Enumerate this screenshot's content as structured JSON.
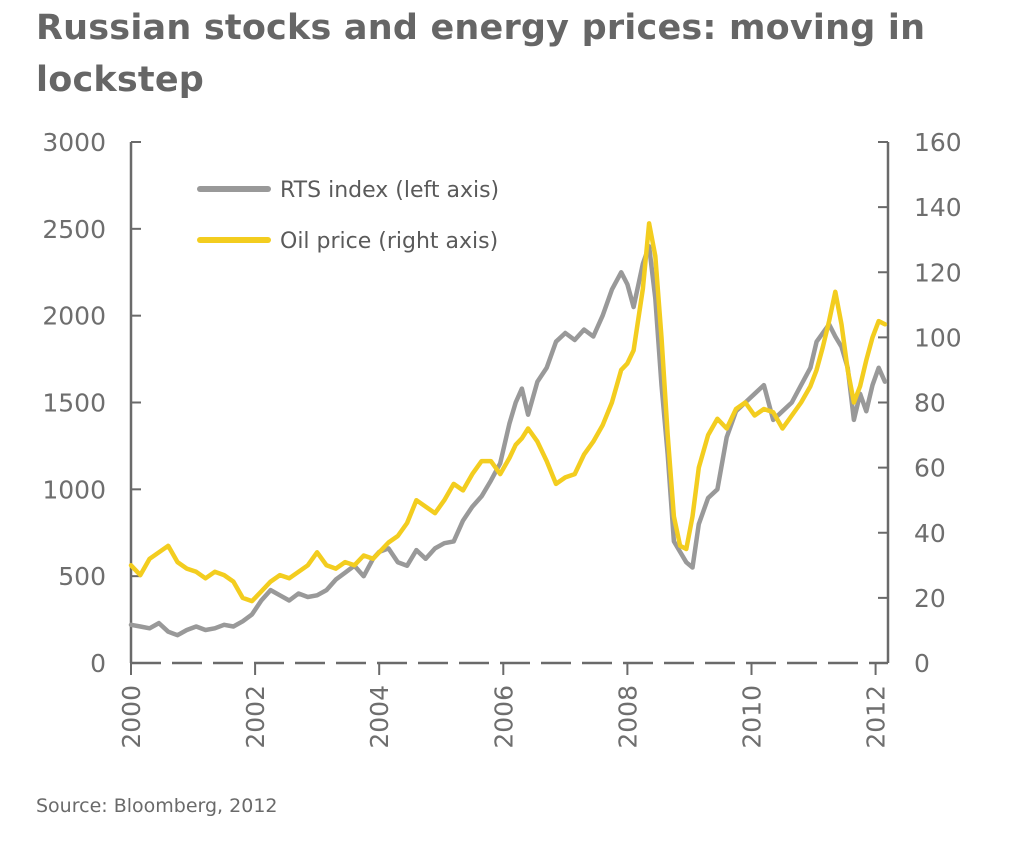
{
  "title": "Russian stocks and energy prices: moving in lockstep",
  "source": "Source: Bloomberg, 2012",
  "chart_data": {
    "type": "line",
    "title": "Russian stocks and energy prices: moving in lockstep",
    "xlabel": "",
    "ylabel": "",
    "xlim": [
      2000,
      2012.2
    ],
    "ylim_left": [
      0,
      3000
    ],
    "ylim_right": [
      0,
      160
    ],
    "x_ticks": [
      "2000",
      "2002",
      "2004",
      "2006",
      "2008",
      "2010",
      "2012"
    ],
    "y_ticks_left": [
      "3000",
      "2500",
      "2000",
      "1500",
      "1000",
      "500",
      "0"
    ],
    "y_ticks_right": [
      "160",
      "140",
      "120",
      "100",
      "80",
      "60",
      "40",
      "20",
      "0"
    ],
    "legend_position": "top-left",
    "grid": false,
    "series": [
      {
        "name": "RTS index (left axis)",
        "axis": "left",
        "color": "#999999",
        "x": [
          2000.0,
          2000.15,
          2000.3,
          2000.45,
          2000.6,
          2000.75,
          2000.9,
          2001.05,
          2001.2,
          2001.35,
          2001.5,
          2001.65,
          2001.8,
          2001.95,
          2002.1,
          2002.25,
          2002.4,
          2002.55,
          2002.7,
          2002.85,
          2003.0,
          2003.15,
          2003.3,
          2003.45,
          2003.6,
          2003.75,
          2003.9,
          2004.0,
          2004.15,
          2004.3,
          2004.45,
          2004.6,
          2004.75,
          2004.9,
          2005.05,
          2005.2,
          2005.35,
          2005.5,
          2005.65,
          2005.8,
          2005.95,
          2006.1,
          2006.2,
          2006.3,
          2006.4,
          2006.55,
          2006.7,
          2006.85,
          2007.0,
          2007.15,
          2007.3,
          2007.45,
          2007.6,
          2007.75,
          2007.9,
          2008.0,
          2008.1,
          2008.25,
          2008.35,
          2008.45,
          2008.55,
          2008.65,
          2008.75,
          2008.85,
          2008.95,
          2009.05,
          2009.15,
          2009.3,
          2009.45,
          2009.6,
          2009.75,
          2009.9,
          2010.05,
          2010.2,
          2010.35,
          2010.5,
          2010.65,
          2010.8,
          2010.95,
          2011.05,
          2011.15,
          2011.25,
          2011.35,
          2011.45,
          2011.55,
          2011.65,
          2011.75,
          2011.85,
          2011.95,
          2012.05,
          2012.15
        ],
        "values": [
          220,
          210,
          200,
          230,
          180,
          160,
          190,
          210,
          190,
          200,
          220,
          210,
          240,
          280,
          360,
          420,
          390,
          360,
          400,
          380,
          390,
          420,
          480,
          520,
          560,
          500,
          600,
          640,
          660,
          580,
          560,
          650,
          600,
          660,
          690,
          700,
          820,
          900,
          960,
          1050,
          1150,
          1380,
          1500,
          1580,
          1430,
          1620,
          1700,
          1850,
          1900,
          1860,
          1920,
          1880,
          2000,
          2150,
          2250,
          2180,
          2050,
          2300,
          2400,
          2100,
          1600,
          1200,
          700,
          640,
          580,
          550,
          800,
          950,
          1000,
          1300,
          1450,
          1500,
          1550,
          1600,
          1400,
          1450,
          1500,
          1600,
          1700,
          1850,
          1900,
          1950,
          1880,
          1820,
          1700,
          1400,
          1550,
          1450,
          1600,
          1700,
          1620
        ]
      },
      {
        "name": "Oil price (right axis)",
        "axis": "right",
        "color": "#f3cd1f",
        "x": [
          2000.0,
          2000.15,
          2000.3,
          2000.45,
          2000.6,
          2000.75,
          2000.9,
          2001.05,
          2001.2,
          2001.35,
          2001.5,
          2001.65,
          2001.8,
          2001.95,
          2002.1,
          2002.25,
          2002.4,
          2002.55,
          2002.7,
          2002.85,
          2003.0,
          2003.15,
          2003.3,
          2003.45,
          2003.6,
          2003.75,
          2003.9,
          2004.0,
          2004.15,
          2004.3,
          2004.45,
          2004.6,
          2004.75,
          2004.9,
          2005.05,
          2005.2,
          2005.35,
          2005.5,
          2005.65,
          2005.8,
          2005.95,
          2006.1,
          2006.2,
          2006.3,
          2006.4,
          2006.55,
          2006.7,
          2006.85,
          2007.0,
          2007.15,
          2007.3,
          2007.45,
          2007.6,
          2007.75,
          2007.9,
          2008.0,
          2008.1,
          2008.25,
          2008.35,
          2008.45,
          2008.55,
          2008.65,
          2008.75,
          2008.85,
          2008.95,
          2009.05,
          2009.15,
          2009.3,
          2009.45,
          2009.6,
          2009.75,
          2009.9,
          2010.05,
          2010.2,
          2010.35,
          2010.5,
          2010.65,
          2010.8,
          2010.95,
          2011.05,
          2011.15,
          2011.25,
          2011.35,
          2011.45,
          2011.55,
          2011.65,
          2011.75,
          2011.85,
          2011.95,
          2012.05,
          2012.15
        ],
        "values": [
          30,
          27,
          32,
          34,
          36,
          31,
          29,
          28,
          26,
          28,
          27,
          25,
          20,
          19,
          22,
          25,
          27,
          26,
          28,
          30,
          34,
          30,
          29,
          31,
          30,
          33,
          32,
          34,
          37,
          39,
          43,
          50,
          48,
          46,
          50,
          55,
          53,
          58,
          62,
          62,
          58,
          63,
          67,
          69,
          72,
          68,
          62,
          55,
          57,
          58,
          64,
          68,
          73,
          80,
          90,
          92,
          96,
          115,
          135,
          125,
          100,
          70,
          45,
          36,
          35,
          45,
          60,
          70,
          75,
          72,
          78,
          80,
          76,
          78,
          77,
          72,
          76,
          80,
          85,
          90,
          97,
          105,
          114,
          104,
          90,
          80,
          85,
          93,
          100,
          105,
          104
        ]
      }
    ]
  }
}
